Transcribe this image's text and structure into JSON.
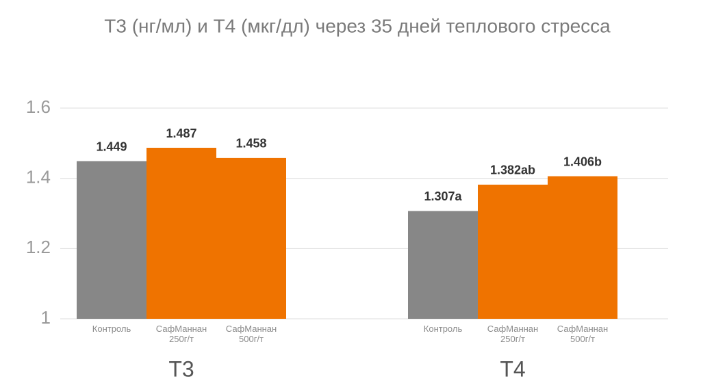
{
  "chart_data": {
    "type": "bar",
    "title": "T3 (нг/мл) и T4 (мкг/дл) через 35 дней теплового стресса",
    "ylim": [
      1,
      1.6
    ],
    "yticks": [
      1,
      1.2,
      1.4,
      1.6
    ],
    "grid": true,
    "groups": [
      {
        "name": "T3",
        "categories": [
          [
            "Контроль"
          ],
          [
            "СафМаннан",
            "250г/т"
          ],
          [
            "СафМаннан",
            "500г/т"
          ]
        ],
        "values": [
          1.449,
          1.487,
          1.458
        ],
        "colors": [
          "#878787",
          "#ef7300",
          "#ef7300"
        ]
      },
      {
        "name": "T4",
        "categories": [
          [
            "Контроль"
          ],
          [
            "СафМаннан",
            "250г/т"
          ],
          [
            "СафМаннан",
            "500г/т"
          ]
        ],
        "values": [
          1.307,
          1.382,
          1.406
        ],
        "value_labels": [
          "1.307a",
          "1.382ab",
          "1.406b"
        ],
        "colors": [
          "#878787",
          "#ef7300",
          "#ef7300"
        ]
      }
    ]
  }
}
